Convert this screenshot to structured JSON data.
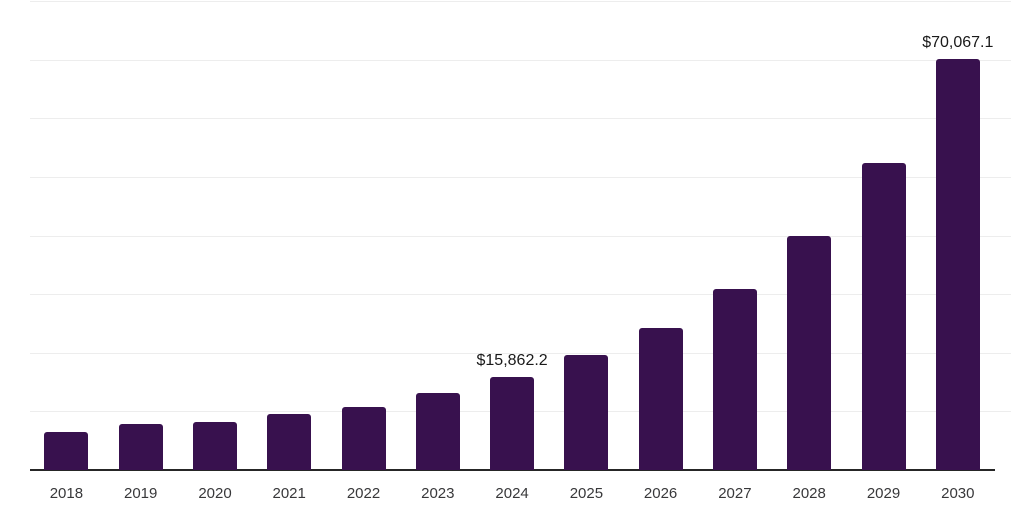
{
  "chart_data": {
    "type": "bar",
    "title": "",
    "xlabel": "",
    "ylabel": "",
    "categories": [
      "2018",
      "2019",
      "2020",
      "2021",
      "2022",
      "2023",
      "2024",
      "2025",
      "2026",
      "2027",
      "2028",
      "2029",
      "2030"
    ],
    "values": [
      6430,
      7800,
      8240,
      9500,
      10790,
      13190,
      15862.2,
      19570,
      24170,
      30830,
      39920,
      52320,
      70067.1
    ],
    "data_labels": [
      "",
      "",
      "",
      "",
      "",
      "",
      "$15,862.2",
      "",
      "",
      "",
      "",
      "",
      "$70,067.1"
    ],
    "value_prefix": "$",
    "ylim": [
      0,
      80000
    ],
    "y_gridline_step": 10000,
    "grid": "horizontal",
    "y_axis_tick_labels_visible": false,
    "legend_position": "none",
    "colors": {
      "bar": "#38114E",
      "axis_line": "#262626",
      "gridline": "#ededed",
      "data_label": "#1a1a1a",
      "tick_label": "#38383a",
      "background": "#ffffff"
    }
  }
}
